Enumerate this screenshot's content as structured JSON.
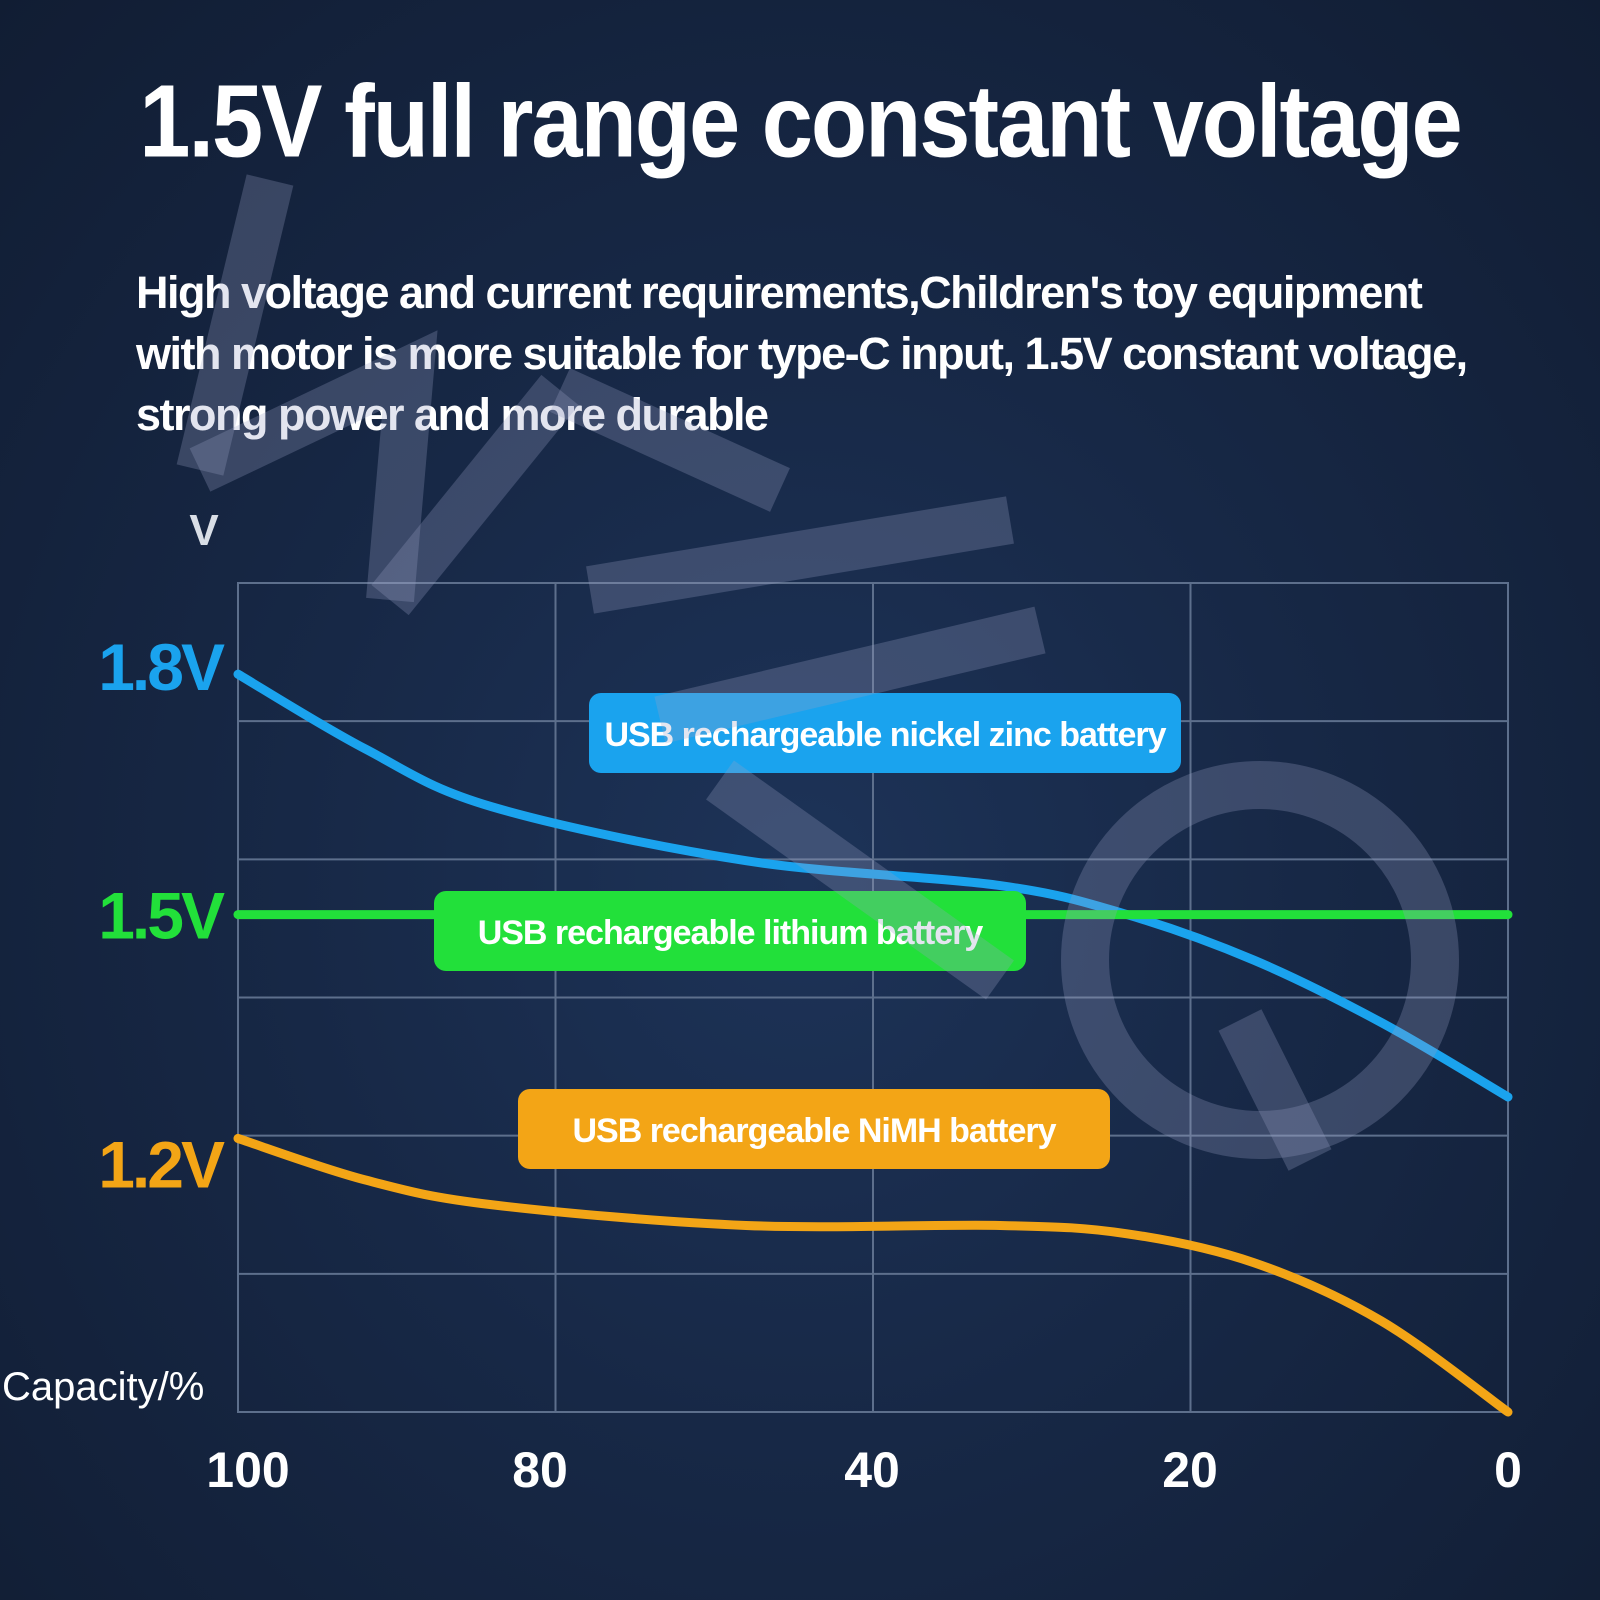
{
  "title": "1.5V full range constant voltage",
  "subtitle": "High voltage and current requirements,Children's toy equipment with motor is more suitable for type-C input, 1.5V constant voltage, strong power and more durable",
  "watermark": "WILLQ",
  "chart_data": {
    "type": "line",
    "ylabel": "V",
    "xlabel": "Capacity/%",
    "x_ticks": [
      "100",
      "80",
      "40",
      "20",
      "0"
    ],
    "y_ticks": [
      {
        "value": 1.8,
        "label": "1.8V",
        "color": "#1aa3ee"
      },
      {
        "value": 1.5,
        "label": "1.5V",
        "color": "#22e03a"
      },
      {
        "value": 1.2,
        "label": "1.2V",
        "color": "#f3a516"
      }
    ],
    "ylim": [
      0.9,
      1.9
    ],
    "xlim": [
      100,
      0
    ],
    "grid": true,
    "series": [
      {
        "name": "USB rechargeable nickel zinc battery",
        "color": "#1aa3ee",
        "points": [
          [
            100,
            1.79
          ],
          [
            90,
            1.7
          ],
          [
            80,
            1.63
          ],
          [
            60,
            1.565
          ],
          [
            40,
            1.535
          ],
          [
            30,
            1.5
          ],
          [
            20,
            1.445
          ],
          [
            10,
            1.37
          ],
          [
            0,
            1.28
          ]
        ]
      },
      {
        "name": "USB rechargeable lithium battery",
        "color": "#22e03a",
        "points": [
          [
            100,
            1.5
          ],
          [
            80,
            1.5
          ],
          [
            60,
            1.5
          ],
          [
            40,
            1.5
          ],
          [
            20,
            1.5
          ],
          [
            0,
            1.5
          ]
        ]
      },
      {
        "name": "USB rechargeable NiMH battery",
        "color": "#f3a516",
        "points": [
          [
            100,
            1.23
          ],
          [
            90,
            1.18
          ],
          [
            80,
            1.15
          ],
          [
            60,
            1.125
          ],
          [
            40,
            1.125
          ],
          [
            30,
            1.115
          ],
          [
            20,
            1.08
          ],
          [
            10,
            1.01
          ],
          [
            0,
            0.9
          ]
        ]
      }
    ]
  }
}
